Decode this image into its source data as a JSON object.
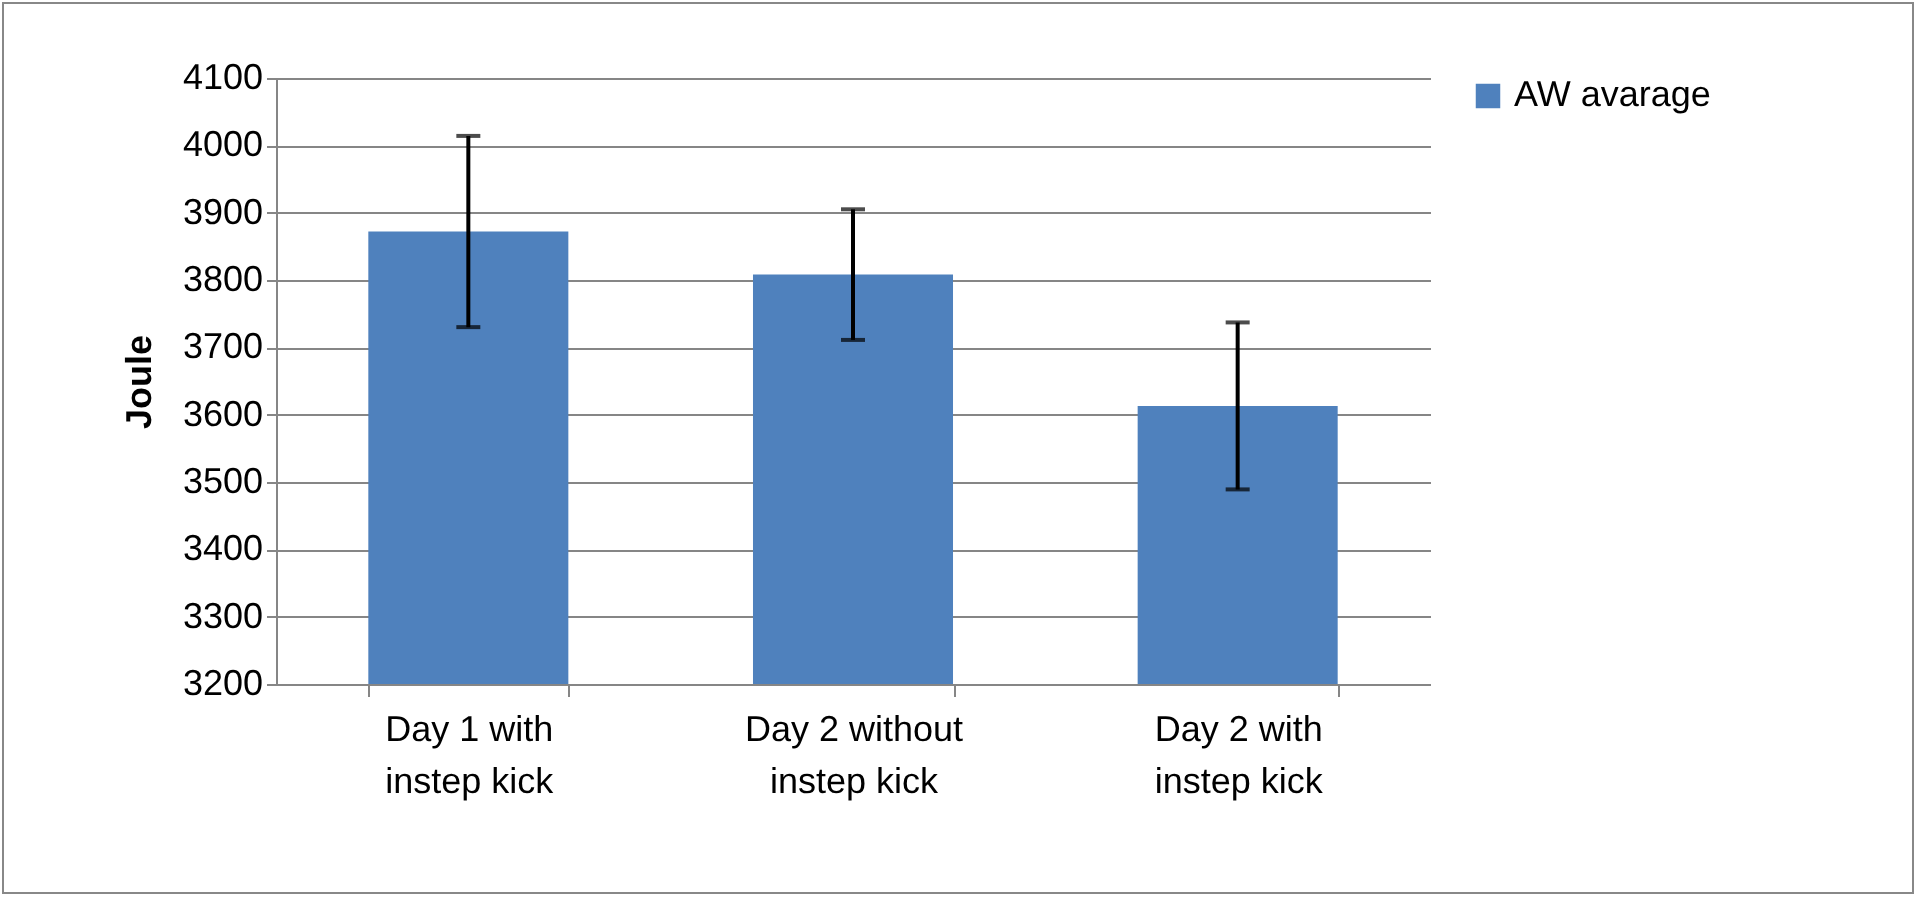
{
  "chart_data": {
    "type": "bar",
    "ylabel": "Joule",
    "categories": [
      "Day 1 with instep kick",
      "Day 2 without instep kick",
      "Day 2 with instep kick"
    ],
    "series": [
      {
        "name": "AW avarage",
        "color": "#4f81bd",
        "values": [
          3872,
          3808,
          3613
        ],
        "errors": [
          142,
          97,
          124
        ]
      }
    ],
    "ylim": [
      3200,
      4100
    ],
    "yticks": [
      3200,
      3300,
      3400,
      3500,
      3600,
      3700,
      3800,
      3900,
      4000,
      4100
    ],
    "grid": "y",
    "legend": "right"
  }
}
